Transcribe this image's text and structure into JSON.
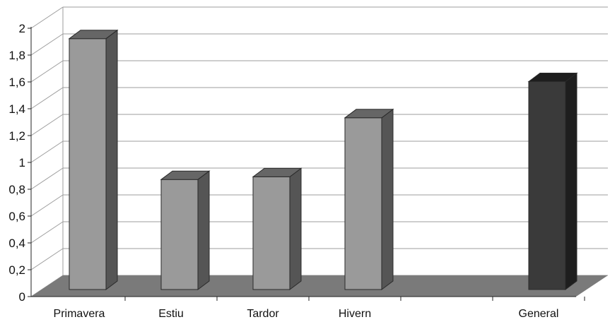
{
  "chart_data": {
    "type": "bar",
    "categories": [
      "Primavera",
      "Estiu",
      "Tardor",
      "Hivern",
      "",
      "General"
    ],
    "values": [
      1.87,
      0.82,
      0.84,
      1.28,
      null,
      1.55
    ],
    "ylim": [
      0,
      2
    ],
    "yticks": [
      "0",
      "0,2",
      "0,4",
      "0,6",
      "0,8",
      "1",
      "1,2",
      "1,4",
      "1,6",
      "1,8",
      "2"
    ],
    "grid": true,
    "legend": "none",
    "three_d": true,
    "colors": {
      "bar": "#9a9a9a",
      "bar_side": "#555555",
      "bar_top": "#666666",
      "highlight_bar": "#3a3a3a",
      "highlight_side": "#1e1e1e",
      "floor": "#7a7a7a",
      "grid": "#9c9c9c"
    }
  }
}
